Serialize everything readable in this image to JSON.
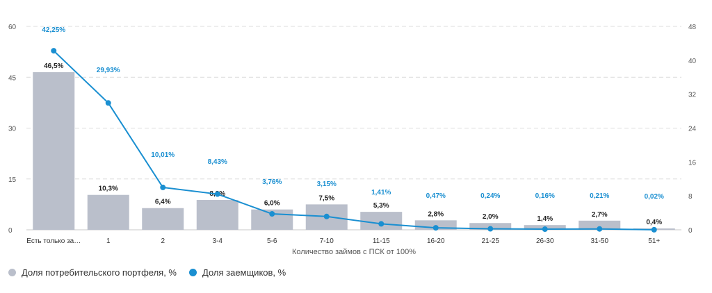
{
  "chart_data": {
    "type": "bar+line",
    "xlabel": "Количество займов с ПСК от 100%",
    "categories": [
      "Есть только за…",
      "1",
      "2",
      "3-4",
      "5-6",
      "7-10",
      "11-15",
      "16-20",
      "21-25",
      "26-30",
      "31-50",
      "51+"
    ],
    "series": [
      {
        "name": "Доля потребительского портфеля, %",
        "type": "bar",
        "axis": "left",
        "color": "#babfcb",
        "values": [
          46.5,
          10.3,
          6.4,
          8.8,
          6.0,
          7.5,
          5.3,
          2.8,
          2.0,
          1.4,
          2.7,
          0.4
        ],
        "labels": [
          "46,5%",
          "10,3%",
          "6,4%",
          "8,8%",
          "6,0%",
          "7,5%",
          "5,3%",
          "2,8%",
          "2,0%",
          "1,4%",
          "2,7%",
          "0,4%"
        ]
      },
      {
        "name": "Доля заемщиков, %",
        "type": "line",
        "axis": "right",
        "color": "#1a8fd1",
        "values": [
          42.25,
          29.93,
          10.01,
          8.43,
          3.76,
          3.15,
          1.41,
          0.47,
          0.24,
          0.16,
          0.21,
          0.02
        ],
        "labels": [
          "42,25%",
          "29,93%",
          "10,01%",
          "8,43%",
          "3,76%",
          "3,15%",
          "1,41%",
          "0,47%",
          "0,24%",
          "0,16%",
          "0,21%",
          "0,02%"
        ]
      }
    ],
    "y_left": {
      "min": 0,
      "max": 60,
      "ticks": [
        "0",
        "15",
        "30",
        "45",
        "60"
      ]
    },
    "y_right": {
      "min": 0,
      "max": 48,
      "ticks": [
        "0",
        "8",
        "16",
        "24",
        "32",
        "40",
        "48"
      ]
    },
    "grid": true,
    "legend_position": "bottom-left"
  }
}
